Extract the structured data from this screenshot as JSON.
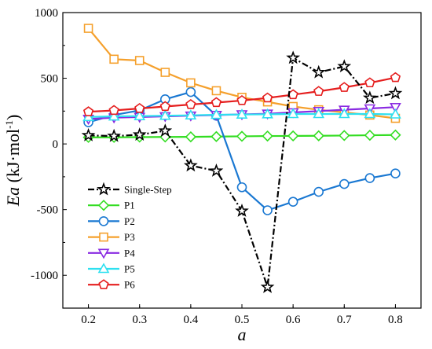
{
  "chart_data": {
    "type": "line",
    "title": "",
    "xlabel": "a",
    "ylabel": {
      "main": "Ea",
      "unit_open": " (kJ·mol",
      "unit_sup": "-1",
      "unit_close": ")"
    },
    "xlim": [
      0.15,
      0.85
    ],
    "ylim": [
      -1250,
      1000
    ],
    "xticks": [
      0.2,
      0.3,
      0.4,
      0.5,
      0.6,
      0.7,
      0.8
    ],
    "xtick_labels": [
      "0.2",
      "0.3",
      "0.4",
      "0.5",
      "0.6",
      "0.7",
      "0.8"
    ],
    "yticks": [
      -1000,
      -500,
      0,
      500,
      1000
    ],
    "ytick_labels": [
      "-1000",
      "-500",
      "0",
      "500",
      "1000"
    ],
    "grid": false,
    "legend_position": "bottom-left",
    "x": [
      0.2,
      0.25,
      0.3,
      0.35,
      0.4,
      0.45,
      0.5,
      0.55,
      0.6,
      0.65,
      0.7,
      0.75,
      0.8
    ],
    "series": [
      {
        "name": "Single-Step",
        "color": "#000000",
        "marker": "star",
        "dash": "dashdot",
        "values": [
          65,
          60,
          70,
          100,
          -165,
          -205,
          -510,
          -1090,
          655,
          545,
          590,
          350,
          385
        ]
      },
      {
        "name": "P1",
        "color": "#33dd22",
        "marker": "diamond",
        "dash": "solid",
        "values": [
          50,
          50,
          52,
          53,
          54,
          56,
          58,
          60,
          61,
          62,
          64,
          66,
          68
        ]
      },
      {
        "name": "P2",
        "color": "#1a78d2",
        "marker": "circle",
        "dash": "solid",
        "values": [
          165,
          220,
          255,
          340,
          395,
          215,
          -330,
          -505,
          -440,
          -365,
          -305,
          -260,
          -225
        ]
      },
      {
        "name": "P3",
        "color": "#f5a02c",
        "marker": "square",
        "dash": "solid",
        "values": [
          880,
          645,
          635,
          545,
          465,
          405,
          355,
          320,
          285,
          260,
          240,
          220,
          195
        ]
      },
      {
        "name": "P4",
        "color": "#8a2be2",
        "marker": "triangle-down",
        "dash": "solid",
        "values": [
          190,
          200,
          205,
          210,
          215,
          220,
          225,
          230,
          240,
          250,
          260,
          270,
          280
        ]
      },
      {
        "name": "P5",
        "color": "#2ee0f0",
        "marker": "triangle-up",
        "dash": "solid",
        "values": [
          205,
          210,
          212,
          215,
          218,
          222,
          224,
          226,
          228,
          228,
          228,
          228,
          225
        ]
      },
      {
        "name": "P6",
        "color": "#e51e1e",
        "marker": "pentagon",
        "dash": "solid",
        "values": [
          245,
          255,
          270,
          285,
          300,
          315,
          330,
          350,
          375,
          400,
          430,
          465,
          505
        ]
      }
    ]
  }
}
